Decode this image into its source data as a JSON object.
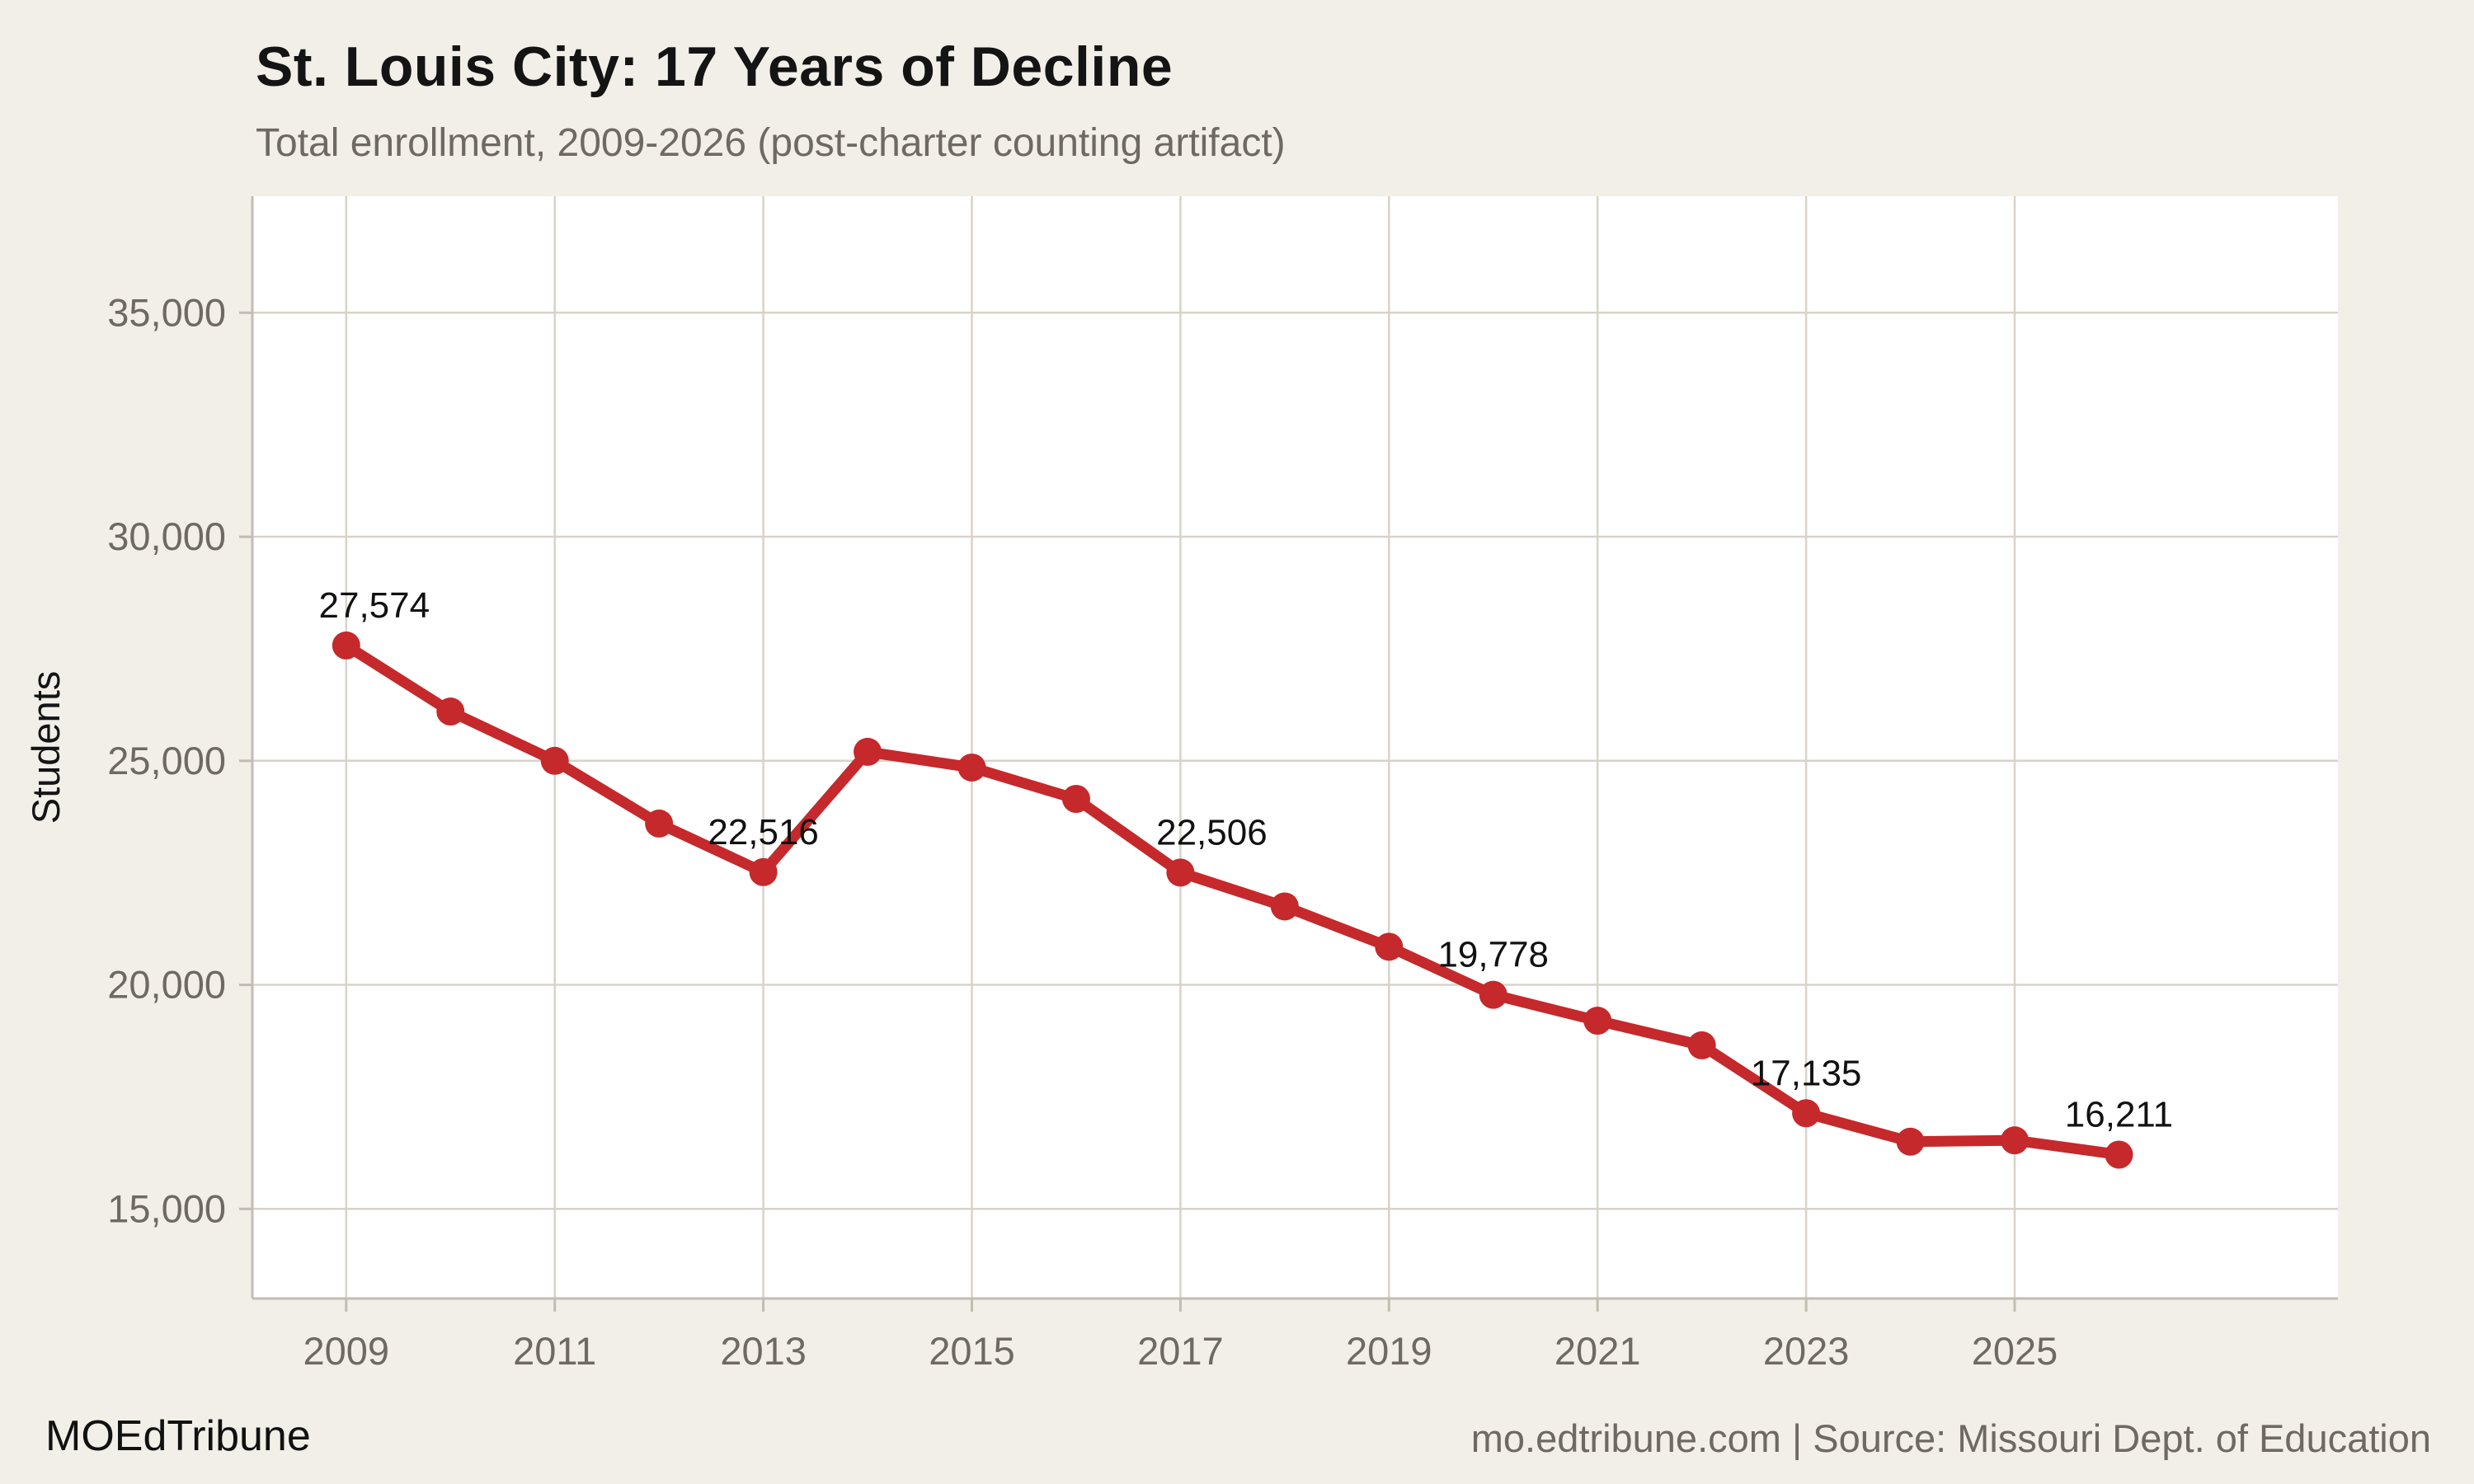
{
  "header": {
    "title": "St. Louis City: 17 Years of Decline",
    "subtitle": "Total enrollment, 2009-2026 (post-charter counting artifact)"
  },
  "footer": {
    "brand": "MOEdTribune",
    "source": "mo.edtribune.com | Source: Missouri Dept. of Education"
  },
  "chart_data": {
    "type": "line",
    "title": "St. Louis City: 17 Years of Decline",
    "subtitle": "Total enrollment, 2009-2026 (post-charter counting artifact)",
    "xlabel": "",
    "ylabel": "Students",
    "x": [
      2009,
      2010,
      2011,
      2012,
      2013,
      2014,
      2015,
      2016,
      2017,
      2018,
      2019,
      2020,
      2021,
      2022,
      2023,
      2024,
      2025,
      2026
    ],
    "series": [
      {
        "name": "Total enrollment",
        "values": [
          27574,
          26100,
          25000,
          23600,
          22516,
          25200,
          24850,
          24150,
          22506,
          21750,
          20850,
          19778,
          19200,
          18650,
          17135,
          16500,
          16530,
          16211
        ]
      }
    ],
    "point_labels": [
      {
        "year": 2009,
        "value": 27574,
        "label": "27,574"
      },
      {
        "year": 2013,
        "value": 22516,
        "label": "22,516"
      },
      {
        "year": 2017,
        "value": 22506,
        "label": "22,506"
      },
      {
        "year": 2020,
        "value": 19778,
        "label": "19,778"
      },
      {
        "year": 2023,
        "value": 17135,
        "label": "17,135"
      },
      {
        "year": 2026,
        "value": 16211,
        "label": "16,211"
      }
    ],
    "xticks": [
      {
        "value": 2009,
        "label": "2009"
      },
      {
        "value": 2011,
        "label": "2011"
      },
      {
        "value": 2013,
        "label": "2013"
      },
      {
        "value": 2015,
        "label": "2015"
      },
      {
        "value": 2017,
        "label": "2017"
      },
      {
        "value": 2019,
        "label": "2019"
      },
      {
        "value": 2021,
        "label": "2021"
      },
      {
        "value": 2023,
        "label": "2023"
      },
      {
        "value": 2025,
        "label": "2025"
      }
    ],
    "yticks": [
      {
        "value": 15000,
        "label": "15,000"
      },
      {
        "value": 20000,
        "label": "20,000"
      },
      {
        "value": 25000,
        "label": "25,000"
      },
      {
        "value": 30000,
        "label": "30,000"
      },
      {
        "value": 35000,
        "label": "35,000"
      }
    ],
    "xlim": [
      2008.1,
      2028.1
    ],
    "ylim": [
      13000,
      37600
    ],
    "grid": true,
    "legend": "none",
    "colors": {
      "line": "#C5292B",
      "marker": "#C5292B",
      "page_background": "#F2EFE8",
      "plot_background": "#FFFFFF",
      "gridline": "#D8D3C9",
      "axis": "#C2BDB3",
      "tick_label": "#6E6A63",
      "annotation_text": "#111111"
    }
  }
}
